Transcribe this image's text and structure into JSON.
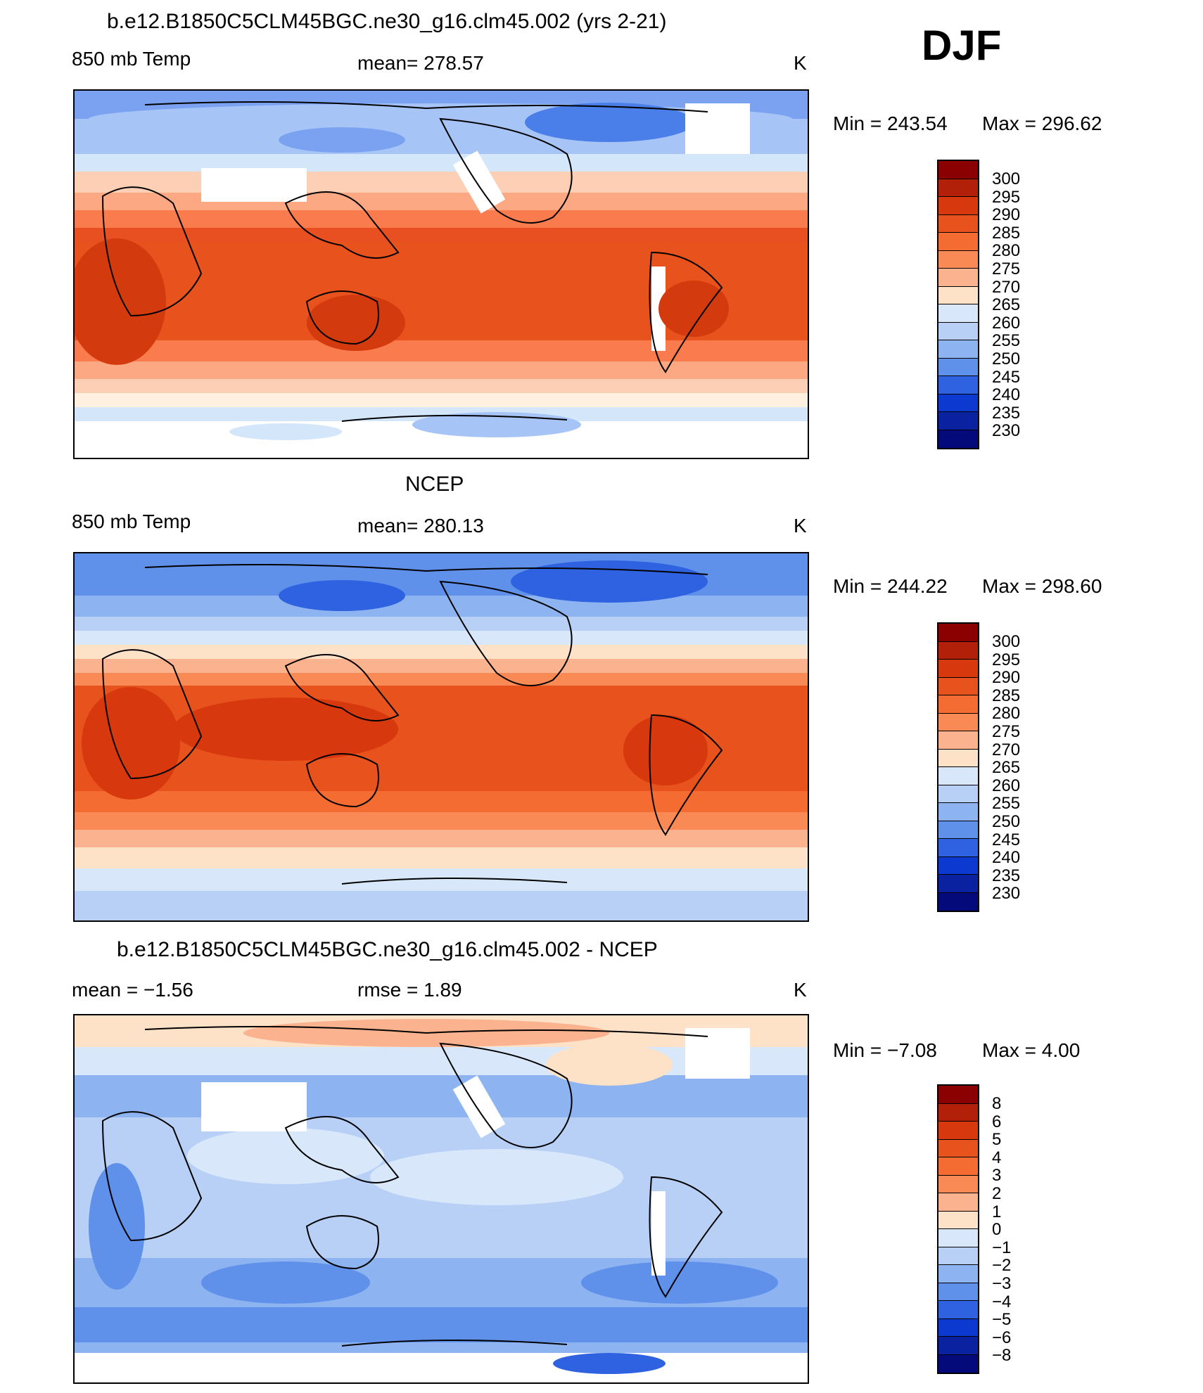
{
  "season": "DJF",
  "colors": {
    "temp_palette": [
      "#0b0b7e",
      "#0a1f96",
      "#0a32c8",
      "#1448e0",
      "#2860e6",
      "#4a7ee8",
      "#7aa2f0",
      "#a6c4f6",
      "#d3e6fa",
      "#fff0e0",
      "#fdcfb4",
      "#fba883",
      "#f97b4e",
      "#e85022",
      "#d33a0e",
      "#b02a0a",
      "#8a0a0a"
    ],
    "map_background": "#ffffff",
    "coastline": "#000000"
  },
  "panels": [
    {
      "title": "b.e12.B1850C5CLM45BGC.ne30_g16.clm45.002 (yrs 2-21)",
      "left_label": "850 mb Temp",
      "center_label": "mean=  278.57",
      "units": "K",
      "min_label": "Min  =  243.54",
      "max_label": "Max  =  296.62",
      "colorbar_labels": [
        "300",
        "295",
        "290",
        "285",
        "280",
        "275",
        "270",
        "265",
        "260",
        "255",
        "250",
        "245",
        "240",
        "235",
        "230"
      ]
    },
    {
      "title": "NCEP",
      "left_label": "850 mb Temp",
      "center_label": "mean=  280.13",
      "units": "K",
      "min_label": "Min  =  244.22",
      "max_label": "Max  =  298.60",
      "colorbar_labels": [
        "300",
        "295",
        "290",
        "285",
        "280",
        "275",
        "270",
        "265",
        "260",
        "255",
        "250",
        "245",
        "240",
        "235",
        "230"
      ]
    },
    {
      "title": "b.e12.B1850C5CLM45BGC.ne30_g16.clm45.002 - NCEP",
      "left_label": "mean  =    −1.56",
      "center_label": "rmse  =     1.89",
      "units": "K",
      "min_label": "Min  =    −7.08",
      "max_label": "Max  =     4.00",
      "colorbar_labels": [
        "8",
        "6",
        "5",
        "4",
        "3",
        "2",
        "1",
        "0",
        "−1",
        "−2",
        "−3",
        "−4",
        "−5",
        "−6",
        "−8"
      ]
    }
  ],
  "colorbar_colors_temp": [
    "#8b0000",
    "#b3200a",
    "#d8380e",
    "#e8521c",
    "#f46c32",
    "#f98a55",
    "#fbb28e",
    "#fde2c8",
    "#d8e8fa",
    "#b8d0f6",
    "#8db4f0",
    "#5f90ea",
    "#2e62e0",
    "#0c3ad0",
    "#0a22a0",
    "#040a7a"
  ],
  "colorbar_colors_diff": [
    "#8b0000",
    "#b3200a",
    "#d8380e",
    "#e8521c",
    "#f46c32",
    "#f98a55",
    "#fbb28e",
    "#fde2c8",
    "#d8e8fa",
    "#b8d0f6",
    "#8db4f0",
    "#5f90ea",
    "#2e62e0",
    "#0c3ad0",
    "#0a22a0",
    "#040a7a"
  ]
}
